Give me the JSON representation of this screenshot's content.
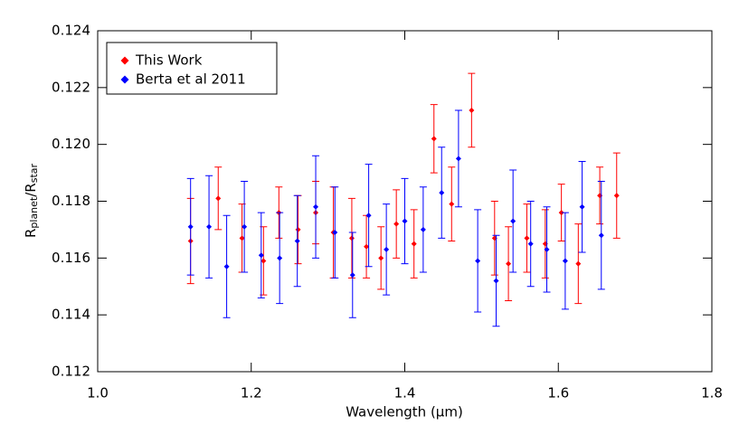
{
  "chart_data": {
    "type": "scatter",
    "xlabel": "Wavelength  (μm)",
    "ylabel_parts": [
      "R",
      "planet",
      "/R",
      "star"
    ],
    "xlim": [
      1.0,
      1.8
    ],
    "xticks": [
      {
        "value": 1.0,
        "label": "1.0"
      },
      1.2,
      1.4,
      1.6,
      1.8
    ],
    "ylim": [
      0.112,
      0.124
    ],
    "yticks": [
      0.112,
      0.114,
      0.116,
      0.118,
      {
        "value": 0.12,
        "label": "0.120"
      },
      0.122,
      0.124
    ],
    "legend": "top-left",
    "series": [
      {
        "name": "This Work",
        "color": "#ff0000",
        "x": [
          1.121,
          1.157,
          1.188,
          1.216,
          1.236,
          1.261,
          1.284,
          1.307,
          1.331,
          1.35,
          1.369,
          1.389,
          1.412,
          1.438,
          1.461,
          1.487,
          1.517,
          1.535,
          1.559,
          1.583,
          1.604,
          1.626,
          1.654,
          1.676
        ],
        "values": [
          0.1166,
          0.1181,
          0.1167,
          0.1159,
          0.1176,
          0.117,
          0.1176,
          0.1169,
          0.1167,
          0.1164,
          0.116,
          0.1172,
          0.1165,
          0.1202,
          0.1179,
          0.1212,
          0.1167,
          0.1158,
          0.1167,
          0.1165,
          0.1176,
          0.1158,
          0.1182,
          0.1182
        ],
        "errors": [
          0.0015,
          0.0011,
          0.0012,
          0.0012,
          0.0009,
          0.0012,
          0.0011,
          0.0016,
          0.0014,
          0.0011,
          0.0011,
          0.0012,
          0.0012,
          0.0012,
          0.0013,
          0.0013,
          0.0013,
          0.0013,
          0.0012,
          0.0012,
          0.001,
          0.0014,
          0.001,
          0.0015
        ]
      },
      {
        "name": "Berta et al 2011",
        "color": "#0000ff",
        "x": [
          1.121,
          1.145,
          1.168,
          1.191,
          1.213,
          1.237,
          1.26,
          1.284,
          1.309,
          1.332,
          1.353,
          1.376,
          1.4,
          1.424,
          1.448,
          1.47,
          1.495,
          1.519,
          1.541,
          1.564,
          1.585,
          1.609,
          1.631,
          1.656
        ],
        "values": [
          0.1171,
          0.1171,
          0.1157,
          0.1171,
          0.1161,
          0.116,
          0.1166,
          0.1178,
          0.1169,
          0.1154,
          0.1175,
          0.1163,
          0.1173,
          0.117,
          0.1183,
          0.1195,
          0.1159,
          0.1152,
          0.1173,
          0.1165,
          0.1163,
          0.1159,
          0.1178,
          0.1168
        ],
        "errors": [
          0.0017,
          0.0018,
          0.0018,
          0.0016,
          0.0015,
          0.0016,
          0.0016,
          0.0018,
          0.0016,
          0.0015,
          0.0018,
          0.0016,
          0.0015,
          0.0015,
          0.0016,
          0.0017,
          0.0018,
          0.0016,
          0.0018,
          0.0015,
          0.0015,
          0.0017,
          0.0016,
          0.0019
        ]
      }
    ]
  }
}
